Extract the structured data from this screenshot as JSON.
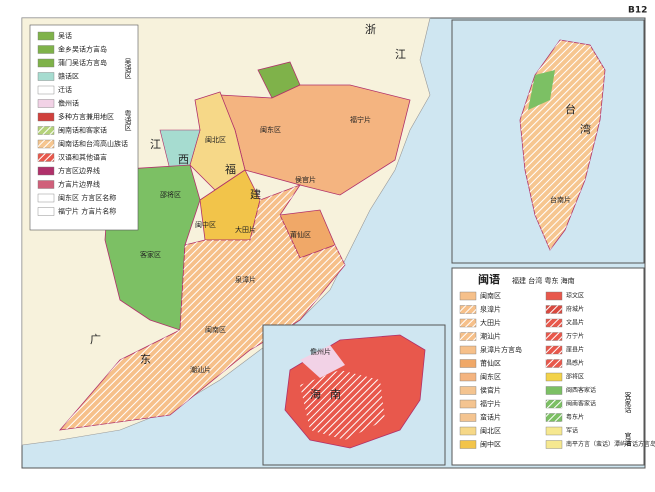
{
  "header": {
    "code": "B12"
  },
  "left_legend": {
    "items": [
      {
        "label": "吴话",
        "color": "#7fb24a",
        "hatch": false
      },
      {
        "label": "金乡吴话方言岛",
        "color": "#7fb24a",
        "hatch": false
      },
      {
        "label": "蒲门吴话方言岛",
        "color": "#7fb24a",
        "hatch": false
      },
      {
        "label": "赣话区",
        "color": "#a6dcd0",
        "hatch": false
      },
      {
        "label": "迁话",
        "color": "#ffffff",
        "hatch": false
      },
      {
        "label": "儋州话",
        "color": "#f2d2e6",
        "hatch": false
      },
      {
        "label": "多种方言兼用地区",
        "color": "#d0403c",
        "hatch": false
      },
      {
        "label": "闽南话和客家话",
        "color": "#b4d27a",
        "hatch": true
      },
      {
        "label": "闽南话和台湾高山族话",
        "color": "#f6c690",
        "hatch": true
      },
      {
        "label": "汉语和其他语言",
        "color": "#e8584c",
        "hatch": true
      },
      {
        "label": "方言区边界线",
        "color": "#b0306a",
        "hatch": false
      },
      {
        "label": "方言片边界线",
        "color": "#d0607a",
        "hatch": false
      },
      {
        "label": "闽东区 方言区名称",
        "color": "#ffffff",
        "hatch": false
      },
      {
        "label": "福宁片 方言片名称",
        "color": "#ffffff",
        "hatch": false
      }
    ],
    "groups": [
      "吴语区",
      "粤语区"
    ]
  },
  "right_legend": {
    "title": "闽语",
    "subtitle": "福建 台湾 粤东 海南",
    "left_items": [
      {
        "label": "闽南区",
        "color": "#f6c08a",
        "hatch": false
      },
      {
        "label": "泉漳片",
        "color": "#f6c08a",
        "hatch": true
      },
      {
        "label": "大田片",
        "color": "#f6c08a",
        "hatch": true
      },
      {
        "label": "潮汕片",
        "color": "#f6c08a",
        "hatch": true
      },
      {
        "label": "泉漳片方言岛",
        "color": "#f6c08a",
        "hatch": false
      },
      {
        "label": "莆仙区",
        "color": "#f0a868",
        "hatch": false
      },
      {
        "label": "闽东区",
        "color": "#f4b480",
        "hatch": false
      },
      {
        "label": "侯官片",
        "color": "#f4c490",
        "hatch": false
      },
      {
        "label": "福宁片",
        "color": "#f4c490",
        "hatch": false
      },
      {
        "label": "蛮话片",
        "color": "#f4c490",
        "hatch": false
      },
      {
        "label": "闽北区",
        "color": "#f6d888",
        "hatch": false
      },
      {
        "label": "闽中区",
        "color": "#f2c44a",
        "hatch": false
      }
    ],
    "right_items": [
      {
        "label": "琼文区",
        "color": "#e8584c",
        "hatch": false
      },
      {
        "label": "府城片",
        "color": "#d84a40",
        "hatch": true
      },
      {
        "label": "文昌片",
        "color": "#e8584c",
        "hatch": true
      },
      {
        "label": "万宁片",
        "color": "#e8584c",
        "hatch": true
      },
      {
        "label": "崖县片",
        "color": "#e8584c",
        "hatch": true
      },
      {
        "label": "昌感片",
        "color": "#e8584c",
        "hatch": true
      },
      {
        "label": "邵将区",
        "color": "#f2d24a",
        "hatch": false
      },
      {
        "label": "闽西客家话",
        "color": "#7cc064",
        "hatch": false
      },
      {
        "label": "闽南客家话",
        "color": "#7cc064",
        "hatch": true
      },
      {
        "label": "粤东片",
        "color": "#7cc064",
        "hatch": true
      },
      {
        "label": "军话",
        "color": "#f6e890",
        "hatch": false
      },
      {
        "label": "南平方言（蛮话）潭屿官话方言岛",
        "color": "#f6e890",
        "hatch": false
      }
    ],
    "groups": [
      "客家话",
      "官话"
    ]
  },
  "map_labels": [
    "浙",
    "江",
    "江",
    "西",
    "福",
    "建",
    "广",
    "东",
    "台",
    "湾",
    "闽北区",
    "闽东区",
    "闽中区",
    "莆仙区",
    "闽南区",
    "客家区",
    "邵将区",
    "海",
    "南",
    "侯官片",
    "福宁片",
    "泉漳片",
    "潮汕片",
    "大田片",
    "台南片",
    "儋州片"
  ]
}
